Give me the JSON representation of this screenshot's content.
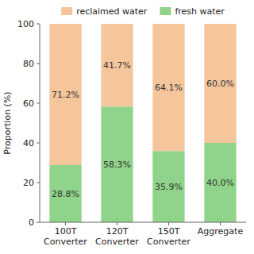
{
  "chart_data": {
    "type": "bar",
    "stacked": true,
    "categories": [
      "100T\nConverter",
      "120T\nConverter",
      "150T\nConverter",
      "Aggregate"
    ],
    "series": [
      {
        "name": "fresh water",
        "color": "#8FD48A",
        "values": [
          28.8,
          58.3,
          35.9,
          40.0
        ],
        "value_labels": [
          "28.8%",
          "58.3%",
          "35.9%",
          "40.0%"
        ]
      },
      {
        "name": "reclaimed water",
        "color": "#F5C59C",
        "values": [
          71.2,
          41.7,
          64.1,
          60.0
        ],
        "value_labels": [
          "71.2%",
          "41.7%",
          "64.1%",
          "60.0%"
        ]
      }
    ],
    "ylabel": "Proportion (%)",
    "ylim": [
      0,
      100
    ],
    "yticks": [
      0,
      20,
      40,
      60,
      80,
      100
    ],
    "grid": false,
    "legend": "top",
    "data_labels": true
  }
}
